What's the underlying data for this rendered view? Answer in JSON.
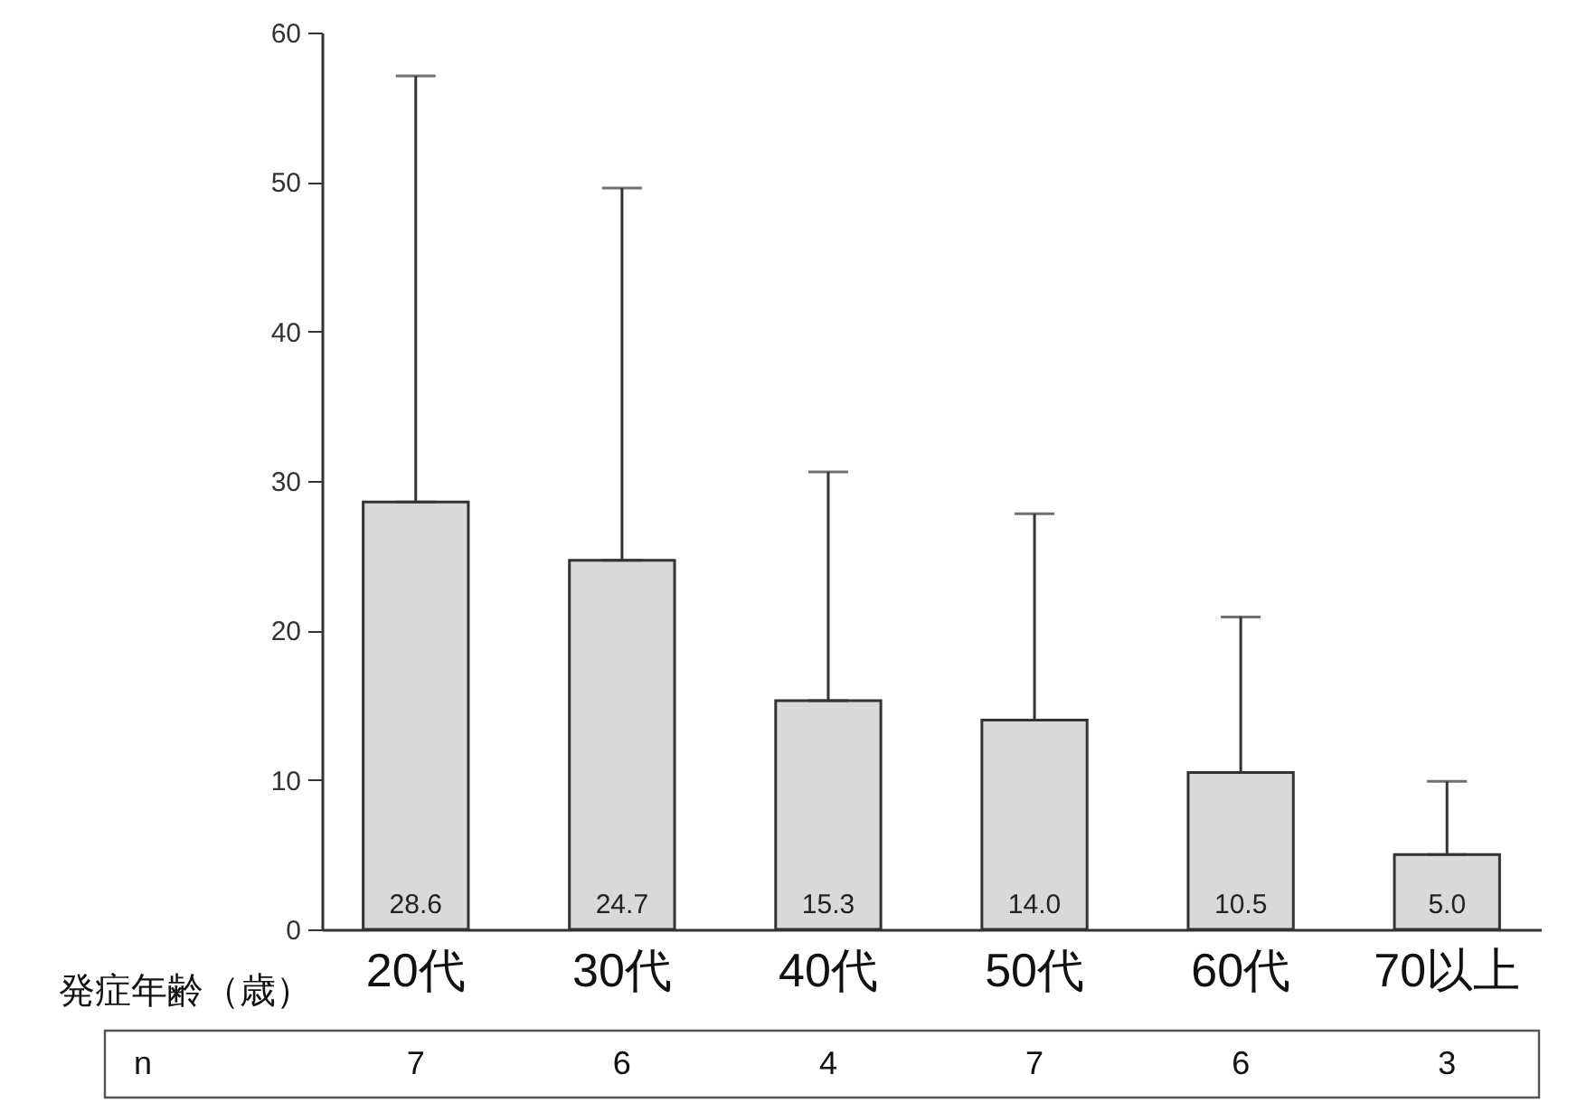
{
  "chart_data": {
    "type": "bar",
    "xlabel": "発症年齢（歳）",
    "categories": [
      "20代",
      "30代",
      "40代",
      "50代",
      "60代",
      "70以上"
    ],
    "values": [
      28.6,
      24.7,
      15.3,
      14.0,
      10.5,
      5.0
    ],
    "value_labels": [
      "28.6",
      "24.7",
      "15.3",
      "14.0",
      "10.5",
      "5.0"
    ],
    "errors": [
      [
        28.6,
        57.1
      ],
      [
        24.7,
        49.6
      ],
      [
        15.3,
        30.6
      ],
      [
        14.0,
        27.8
      ],
      [
        10.5,
        20.9
      ],
      [
        5.0,
        9.9
      ]
    ],
    "color": "#d9d9d9",
    "ylim": [
      0,
      60
    ],
    "yticks": [
      0,
      10,
      20,
      30,
      40,
      50,
      60
    ],
    "annotations": [
      "n",
      "7",
      "6",
      "4",
      "7",
      "6",
      "3"
    ]
  }
}
